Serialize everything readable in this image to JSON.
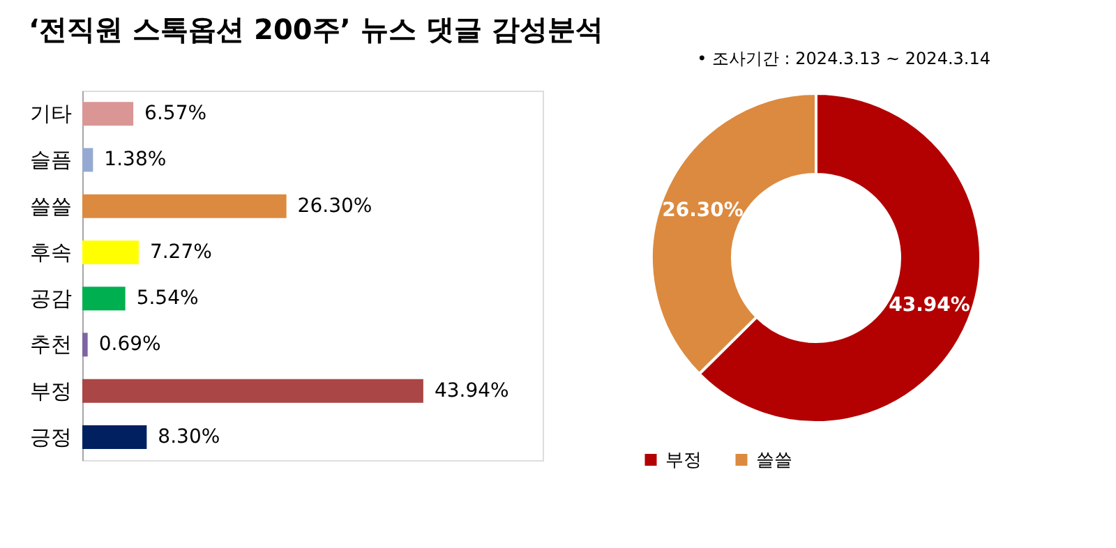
{
  "chart_data": [
    {
      "type": "bar",
      "orientation": "horizontal",
      "title": "‘전직원 스톡옵션 200주’ 뉴스 댓글 감성분석",
      "categories": [
        "기타",
        "슬픔",
        "쓸쓸",
        "후속",
        "공감",
        "추천",
        "부정",
        "긍정"
      ],
      "values": [
        6.57,
        1.38,
        26.3,
        7.27,
        5.54,
        0.69,
        43.94,
        8.3
      ],
      "colors": [
        "#d99694",
        "#95a9d3",
        "#dc8a3f",
        "#ffff00",
        "#00b050",
        "#8064a2",
        "#aa4645",
        "#002060"
      ],
      "value_labels": [
        "6.57%",
        "1.38%",
        "26.30%",
        "7.27%",
        "5.54%",
        "0.69%",
        "43.94%",
        "8.30%"
      ],
      "tick_labels": "y"
    },
    {
      "type": "donut",
      "annotations": [
        "•   조사기간 : 2024.3.13 ~ 2024.3.14"
      ],
      "categories": [
        "부정",
        "쓸쓸"
      ],
      "values": [
        43.94,
        26.3
      ],
      "colors": [
        "#b30000",
        "#dc8a3f"
      ],
      "value_labels": [
        "43.94%",
        "26.30%"
      ],
      "legend": "bottom"
    }
  ]
}
